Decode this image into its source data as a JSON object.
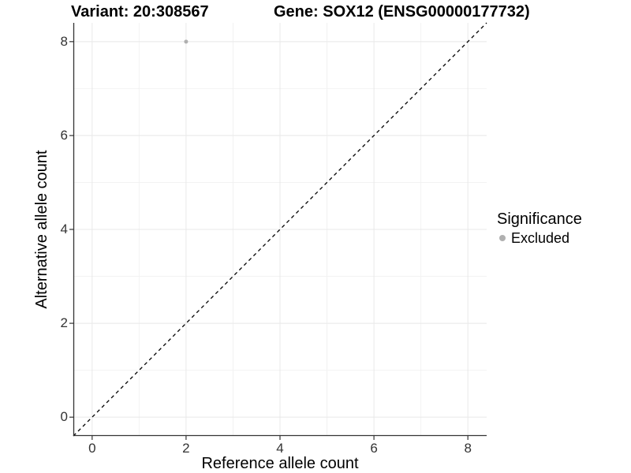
{
  "titles": {
    "variant": "Variant: 20:308567",
    "gene": "Gene: SOX12 (ENSG00000177732)"
  },
  "axes": {
    "x_label": "Reference allele count",
    "y_label": "Alternative allele count"
  },
  "legend": {
    "title": "Significance",
    "entries": [
      {
        "label": "Excluded",
        "marker_color": "#b0b0b0"
      }
    ]
  },
  "chart_data": {
    "type": "scatter",
    "title": "Variant: 20:308567   Gene: SOX12 (ENSG00000177732)",
    "xlabel": "Reference allele count",
    "ylabel": "Alternative allele count",
    "xlim": [
      -0.4,
      8.4
    ],
    "ylim": [
      -0.4,
      8.4
    ],
    "x_ticks": [
      0,
      2,
      4,
      6,
      8
    ],
    "y_ticks": [
      0,
      2,
      4,
      6,
      8
    ],
    "x_minor_ticks": [
      1,
      3,
      5,
      7
    ],
    "y_minor_ticks": [
      1,
      3,
      5,
      7
    ],
    "grid": "major and minor gridlines on white background",
    "legend_position": "right",
    "series": [
      {
        "name": "Excluded",
        "color": "#b0b0b0",
        "marker": "circle",
        "points": [
          {
            "x": 2,
            "y": 8
          }
        ]
      }
    ],
    "reference_line": {
      "type": "identity y = x",
      "style": "dashed",
      "color": "#000000",
      "from": [
        -0.4,
        -0.4
      ],
      "to": [
        8.4,
        8.4
      ]
    },
    "colors": {
      "grid_major": "#e8e8e8",
      "grid_minor": "#f2f2f2",
      "axis_line": "#333333",
      "tick_mark": "#333333",
      "tick_label": "#333333",
      "point": "#b0b0b0"
    }
  }
}
